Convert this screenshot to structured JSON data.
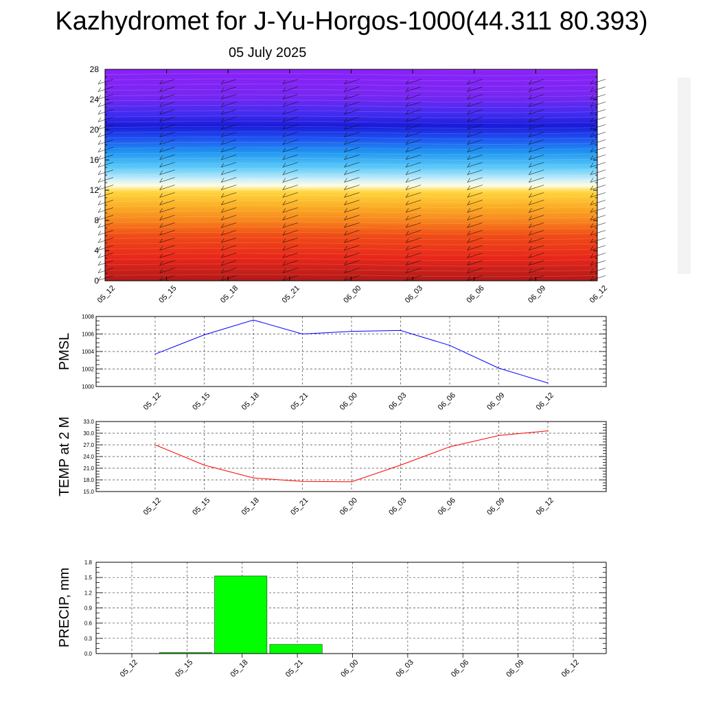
{
  "title": "Kazhydromet for J-Yu-Horgos-1000(44.311 80.393)",
  "date": "05 July 2025",
  "colorbar": {
    "colors": [
      "#f2f2f2",
      "#f5c2c2",
      "#e83a3a",
      "#d81818",
      "#e65010",
      "#f07a10",
      "#f6a31a",
      "#fbc832",
      "#ffef58",
      "#ffffb0",
      "#d8f2f8",
      "#86dcf8",
      "#40b8f5",
      "#1a8ef0",
      "#1a5cf0",
      "#2a2ae6",
      "#5014ee",
      "#8a1cf5"
    ]
  },
  "chart_data": [
    {
      "type": "heatmap",
      "name": "wind-temperature-cross-section",
      "xticks": [
        "05_12",
        "05_15",
        "05_18",
        "05_21",
        "06_00",
        "06_03",
        "06_06",
        "06_09",
        "06_12"
      ],
      "yticks": [
        "0",
        "4",
        "8",
        "12",
        "16",
        "20",
        "24",
        "28"
      ],
      "ylim": [
        0,
        28
      ],
      "layers": [
        {
          "y": 0,
          "color": "#b01a18"
        },
        {
          "y": 3,
          "color": "#e8261a"
        },
        {
          "y": 6,
          "color": "#f04c16"
        },
        {
          "y": 8,
          "color": "#f7861c"
        },
        {
          "y": 10,
          "color": "#fbb126"
        },
        {
          "y": 11.8,
          "color": "#ffd640"
        },
        {
          "y": 12.6,
          "color": "#fffde2"
        },
        {
          "y": 13.4,
          "color": "#cdeffa"
        },
        {
          "y": 15,
          "color": "#5ccaf8"
        },
        {
          "y": 17,
          "color": "#2096f0"
        },
        {
          "y": 19,
          "color": "#1e4cf0"
        },
        {
          "y": 20.5,
          "color": "#1a1ad8"
        },
        {
          "y": 22,
          "color": "#3e2cf0"
        },
        {
          "y": 24.5,
          "color": "#7826f2"
        },
        {
          "y": 28,
          "color": "#8a22f8"
        }
      ],
      "barb_levels": [
        0.5,
        1.5,
        2.5,
        3.5,
        4.5,
        5.5,
        6.5,
        7.5,
        8.5,
        9.5,
        10.5,
        11.5,
        12.5,
        13.5,
        14.5,
        15.5,
        16.5,
        17.5,
        18.5,
        19.5,
        20.5,
        21.5,
        22.5,
        23.5,
        24.5,
        25.5,
        26.5
      ]
    },
    {
      "type": "line",
      "name": "pmsl",
      "ylabel": "PMSL",
      "x": [
        "05_12",
        "05_15",
        "05_18",
        "05_21",
        "06_00",
        "06_03",
        "06_06",
        "06_09",
        "06_12"
      ],
      "values": [
        1003.7,
        1005.9,
        1007.6,
        1006.0,
        1006.3,
        1006.4,
        1004.7,
        1002.1,
        1000.4
      ],
      "yticks": [
        "1000",
        "1002",
        "1004",
        "1006",
        "1008"
      ],
      "ylim": [
        1000,
        1008
      ],
      "color": "#0000ff",
      "grid": true
    },
    {
      "type": "line",
      "name": "temp2m",
      "ylabel": "TEMP at 2 M",
      "x": [
        "05_12",
        "05_15",
        "05_18",
        "05_21",
        "06_00",
        "06_03",
        "06_06",
        "06_09",
        "06_12"
      ],
      "values": [
        27.0,
        21.8,
        18.5,
        17.6,
        17.5,
        21.8,
        26.5,
        29.4,
        30.6
      ],
      "yticks": [
        "15.0",
        "18.0",
        "21.0",
        "24.0",
        "27.0",
        "30.0",
        "33.0"
      ],
      "ylim": [
        15,
        33
      ],
      "color": "#ff0000",
      "grid": true
    },
    {
      "type": "bar",
      "name": "precip",
      "ylabel": "PRECIP, mm",
      "x": [
        "05_12",
        "05_15",
        "05_18",
        "05_21",
        "06_00",
        "06_03",
        "06_06",
        "06_09",
        "06_12"
      ],
      "values": [
        0.0,
        0.02,
        1.53,
        0.18,
        0.0,
        0.0,
        0.0,
        0.0,
        0.0
      ],
      "yticks": [
        "0.0",
        "0.3",
        "0.6",
        "0.9",
        "1.2",
        "1.5",
        "1.8"
      ],
      "ylim": [
        0,
        1.8
      ],
      "color": "#00ff00",
      "grid": true
    }
  ]
}
